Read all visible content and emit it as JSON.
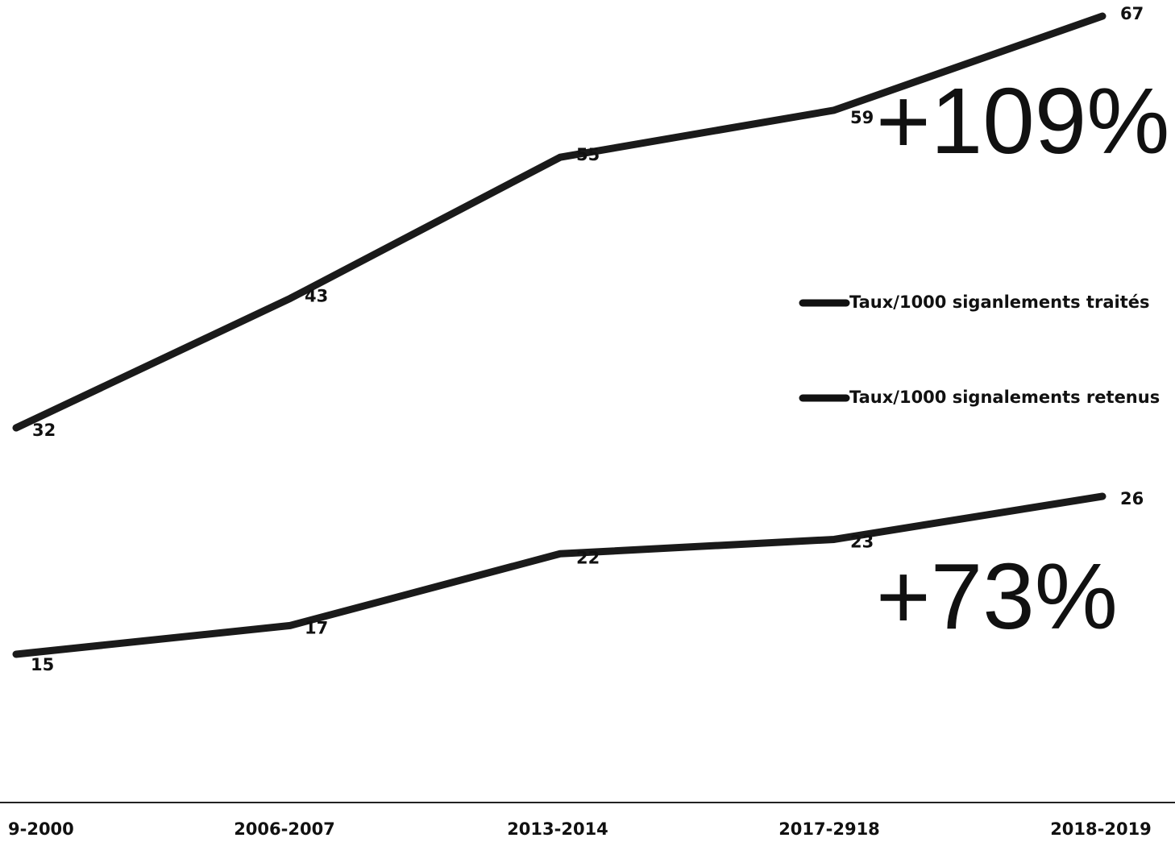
{
  "chart_data": {
    "type": "line",
    "title": "",
    "xlabel": "",
    "ylabel": "",
    "categories": [
      "9-2000",
      "2006-2007",
      "2013-2014",
      "2017-2918",
      "2018-2019"
    ],
    "ylim": [
      0,
      70
    ],
    "grid": false,
    "legend_placement": "right",
    "series": [
      {
        "name": "Taux/1000 siganlements traités",
        "values": [
          32,
          43,
          55,
          59,
          67
        ],
        "labels": [
          "32",
          "43",
          "55",
          "59",
          "67"
        ],
        "color": "#1a1a1a"
      },
      {
        "name": "Taux/1000 signalements retenus",
        "values": [
          15,
          17,
          22,
          23,
          26
        ],
        "labels": [
          "15",
          "17",
          "22",
          "23",
          "26"
        ],
        "color": "#1a1a1a"
      }
    ],
    "annotations": [
      {
        "text": "+109%",
        "series": 0
      },
      {
        "text": "+73%",
        "series": 1
      }
    ]
  }
}
